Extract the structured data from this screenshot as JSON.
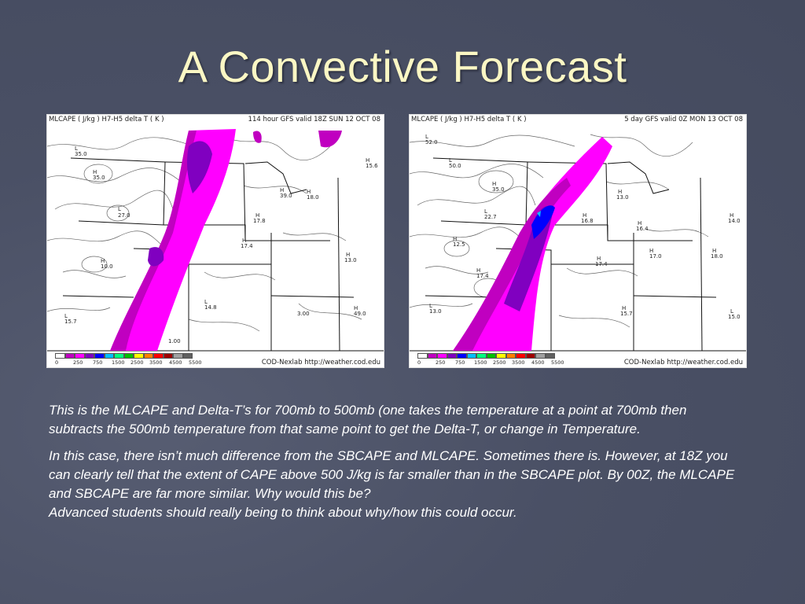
{
  "slide": {
    "title": "A Convective Forecast"
  },
  "maps": [
    {
      "header_left": "MLCAPE ( J/kg )  H7-H5 delta T ( K )",
      "header_right": "114 hour GFS valid 18Z SUN 12 OCT 08",
      "credit": "COD-Nexlab  http://weather.cod.edu"
    },
    {
      "header_left": "MLCAPE ( J/kg )  H7-H5 delta T ( K )",
      "header_right": "5 day GFS valid 0Z MON 13 OCT 08",
      "credit": "COD-Nexlab  http://weather.cod.edu"
    }
  ],
  "colorbar": {
    "labels": [
      "0",
      "250",
      "750",
      "1500",
      "2500",
      "3500",
      "4500",
      "5500"
    ],
    "colors": [
      "#ffffff",
      "#c000c0",
      "#ff00ff",
      "#8000c0",
      "#0000ff",
      "#00c0ff",
      "#00ff80",
      "#00c000",
      "#ffff00",
      "#ff8000",
      "#ff0000",
      "#a00000",
      "#a0a0a0",
      "#606060"
    ]
  },
  "body": {
    "paragraph1": "This is the MLCAPE and Delta-T’s for 700mb to 500mb (one takes the temperature at a point at 700mb then subtracts the 500mb temperature from that same point to get the Delta-T, or change in Temperature.",
    "paragraph2": "In this case, there isn’t much difference from the SBCAPE and MLCAPE. Sometimes there is. However, at 18Z you can clearly tell that the extent of CAPE above 500 J/kg is far smaller than in the SBCAPE plot. By 00Z, the MLCAPE and SBCAPE are far more similar. Why would this be?",
    "paragraph3": "Advanced students should really being to think about why/how this could occur."
  }
}
